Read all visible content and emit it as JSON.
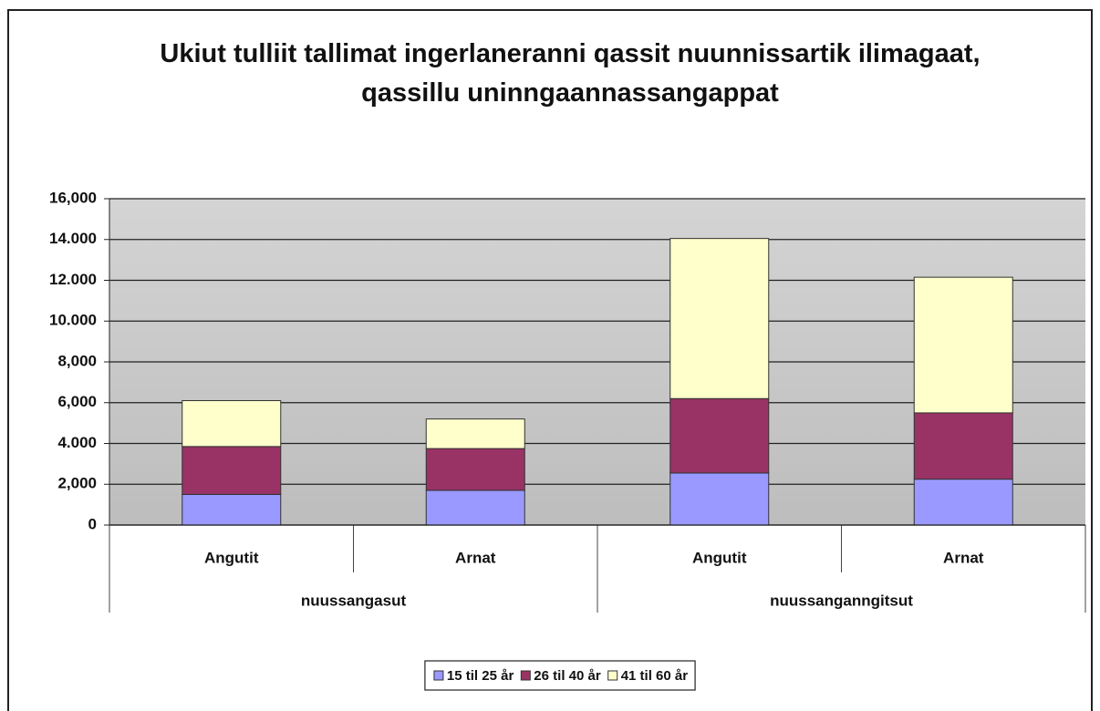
{
  "chart_data": {
    "type": "stacked_bar",
    "title": "Ukiut tulliit tallimat ingerlaneranni qassit nuunnissartik ilimagaat, qassillu uninngaannassangappat",
    "groups": [
      {
        "label": "nuussangasut",
        "categories": [
          "Angutit",
          "Arnat"
        ]
      },
      {
        "label": "nuussanganngitsut",
        "categories": [
          "Angutit",
          "Arnat"
        ]
      }
    ],
    "series": [
      {
        "name": "15 til 25 år",
        "color": "#9999ff",
        "values": [
          1500,
          1700,
          2550,
          2250
        ]
      },
      {
        "name": "26 til 40 år",
        "color": "#993366",
        "values": [
          2350,
          2050,
          3650,
          3250
        ]
      },
      {
        "name": "41 til 60 år",
        "color": "#ffffcc",
        "values": [
          2250,
          1450,
          7850,
          6650
        ]
      }
    ],
    "ylim": [
      0,
      16000
    ],
    "yticks": [
      0,
      {
        "value": 2000,
        "label": "2,000"
      },
      {
        "value": 4000,
        "label": "4.000"
      },
      {
        "value": 6000,
        "label": "6,000"
      },
      {
        "value": 8000,
        "label": "8,000"
      },
      {
        "value": 10000,
        "label": "10.000"
      },
      {
        "value": 12000,
        "label": "12.000"
      },
      {
        "value": 14000,
        "label": "14.000"
      },
      {
        "value": 16000,
        "label": "16,000"
      }
    ],
    "grid": true,
    "legend": "bottom"
  }
}
